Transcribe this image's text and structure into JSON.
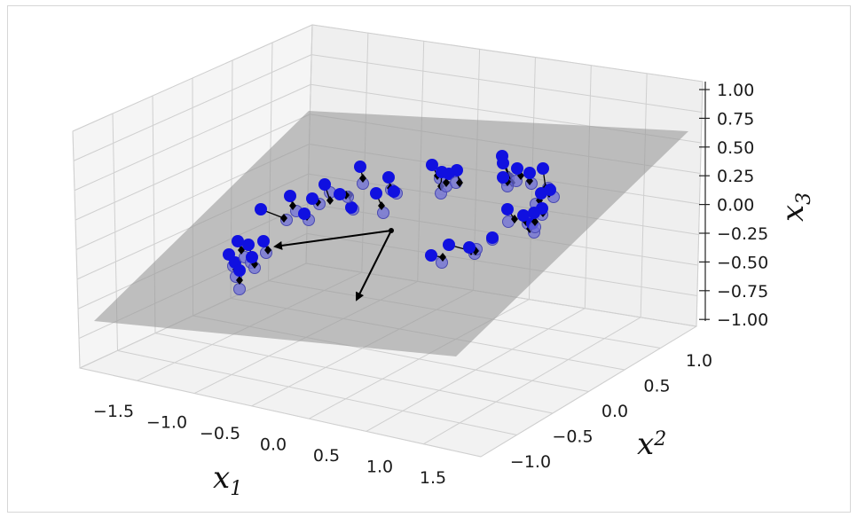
{
  "chart_data": {
    "type": "scatter",
    "title": "",
    "x_axis": {
      "label": "x",
      "label_sub": "1",
      "ticks": [
        "−1.5",
        "−1.0",
        "−0.5",
        "0.0",
        "0.5",
        "1.0",
        "1.5"
      ]
    },
    "y_axis": {
      "label": "x",
      "label_sub": "2",
      "ticks": [
        "−1.0",
        "−0.5",
        "0.0",
        "0.5",
        "1.0"
      ]
    },
    "z_axis": {
      "label": "x",
      "label_sub": "3",
      "ticks": [
        "1.00",
        "0.75",
        "0.50",
        "0.25",
        "0.00",
        "−0.25",
        "−0.50",
        "−0.75",
        "−1.00"
      ]
    },
    "plane": {
      "description": "grey projection plane",
      "color": "#9a9a9a"
    },
    "vectors": {
      "count": 2,
      "color": "#000000"
    },
    "series": [
      {
        "marker": "circle",
        "color": "#1010e0"
      },
      {
        "marker": "circle",
        "color": "#6f6fd8"
      },
      {
        "marker": "diamond",
        "color": "#000000"
      }
    ],
    "grid": true
  }
}
